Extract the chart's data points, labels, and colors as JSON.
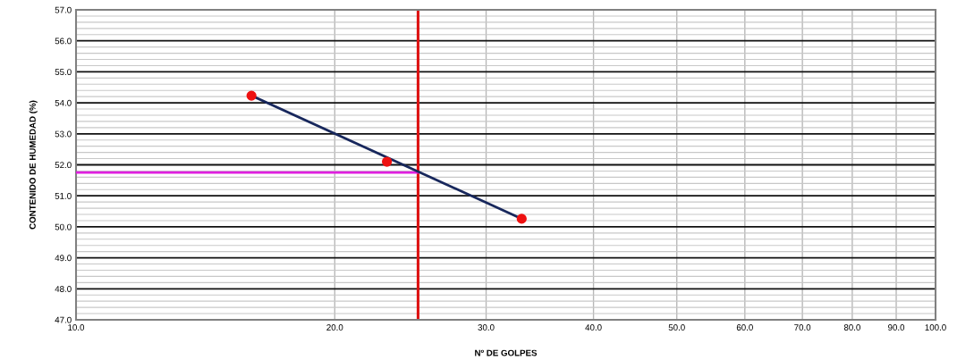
{
  "chart_data": {
    "type": "scatter",
    "xlabel": "Nº DE GOLPES",
    "ylabel": "CONTENIDO DE HUMEDAD (%)",
    "log": "x",
    "grid": true,
    "legend": false,
    "marker": "circle",
    "xlim": [
      10,
      100
    ],
    "ylim": [
      47,
      57
    ],
    "xticks": [
      {
        "value": 10,
        "label": "10.0"
      },
      {
        "value": 20,
        "label": "20.0"
      },
      {
        "value": 30,
        "label": "30.0"
      },
      {
        "value": 40,
        "label": "40.0"
      },
      {
        "value": 50,
        "label": "50.0"
      },
      {
        "value": 60,
        "label": "60.0"
      },
      {
        "value": 70,
        "label": "70.0"
      },
      {
        "value": 80,
        "label": "80.0"
      },
      {
        "value": 90,
        "label": "90.0"
      },
      {
        "value": 100,
        "label": "100.0"
      }
    ],
    "yticks": [
      {
        "value": 47,
        "label": "47.0"
      },
      {
        "value": 47.2,
        "label": null
      },
      {
        "value": 47.4,
        "label": null
      },
      {
        "value": 47.6,
        "label": null
      },
      {
        "value": 47.8,
        "label": null
      },
      {
        "value": 48,
        "label": "48.0"
      },
      {
        "value": 48.2,
        "label": null
      },
      {
        "value": 48.4,
        "label": null
      },
      {
        "value": 48.6,
        "label": null
      },
      {
        "value": 48.8,
        "label": null
      },
      {
        "value": 49,
        "label": "49.0"
      },
      {
        "value": 49.2,
        "label": null
      },
      {
        "value": 49.4,
        "label": null
      },
      {
        "value": 49.6,
        "label": null
      },
      {
        "value": 49.8,
        "label": null
      },
      {
        "value": 50,
        "label": "50.0"
      },
      {
        "value": 50.2,
        "label": null
      },
      {
        "value": 50.4,
        "label": null
      },
      {
        "value": 50.6,
        "label": null
      },
      {
        "value": 50.8,
        "label": null
      },
      {
        "value": 51,
        "label": "51.0"
      },
      {
        "value": 51.2,
        "label": null
      },
      {
        "value": 51.4,
        "label": null
      },
      {
        "value": 51.6,
        "label": null
      },
      {
        "value": 51.8,
        "label": null
      },
      {
        "value": 52,
        "label": "52.0"
      },
      {
        "value": 52.2,
        "label": null
      },
      {
        "value": 52.4,
        "label": null
      },
      {
        "value": 52.6,
        "label": null
      },
      {
        "value": 52.8,
        "label": null
      },
      {
        "value": 53,
        "label": "53.0"
      },
      {
        "value": 53.2,
        "label": null
      },
      {
        "value": 53.4,
        "label": null
      },
      {
        "value": 53.6,
        "label": null
      },
      {
        "value": 53.8,
        "label": null
      },
      {
        "value": 54,
        "label": "54.0"
      },
      {
        "value": 54.2,
        "label": null
      },
      {
        "value": 54.4,
        "label": null
      },
      {
        "value": 54.6,
        "label": null
      },
      {
        "value": 54.8,
        "label": null
      },
      {
        "value": 55,
        "label": "55.0"
      },
      {
        "value": 55.2,
        "label": null
      },
      {
        "value": 55.4,
        "label": null
      },
      {
        "value": 55.6,
        "label": null
      },
      {
        "value": 55.8,
        "label": null
      },
      {
        "value": 56,
        "label": "56.0"
      },
      {
        "value": 56.2,
        "label": null
      },
      {
        "value": 56.4,
        "label": null
      },
      {
        "value": 56.6,
        "label": null
      },
      {
        "value": 56.8,
        "label": null
      },
      {
        "value": 57,
        "label": "57.0"
      }
    ],
    "series": [
      {
        "type": "line",
        "color": "#e020e0",
        "x": [
          10,
          25
        ],
        "values": [
          51.75,
          51.75
        ],
        "marker": "none"
      },
      {
        "type": "line",
        "color": "#17275c",
        "x": [
          16,
          33
        ],
        "values": [
          54.23,
          50.26
        ],
        "marker": "none"
      },
      {
        "color": "#ee1111",
        "x": [
          16,
          23,
          33
        ],
        "values": [
          54.23,
          52.1,
          50.26
        ]
      }
    ],
    "ref_lines": [
      {
        "axis": "x",
        "value": 25,
        "label": null,
        "color": "#dd1111",
        "line_style": "solid"
      }
    ]
  }
}
